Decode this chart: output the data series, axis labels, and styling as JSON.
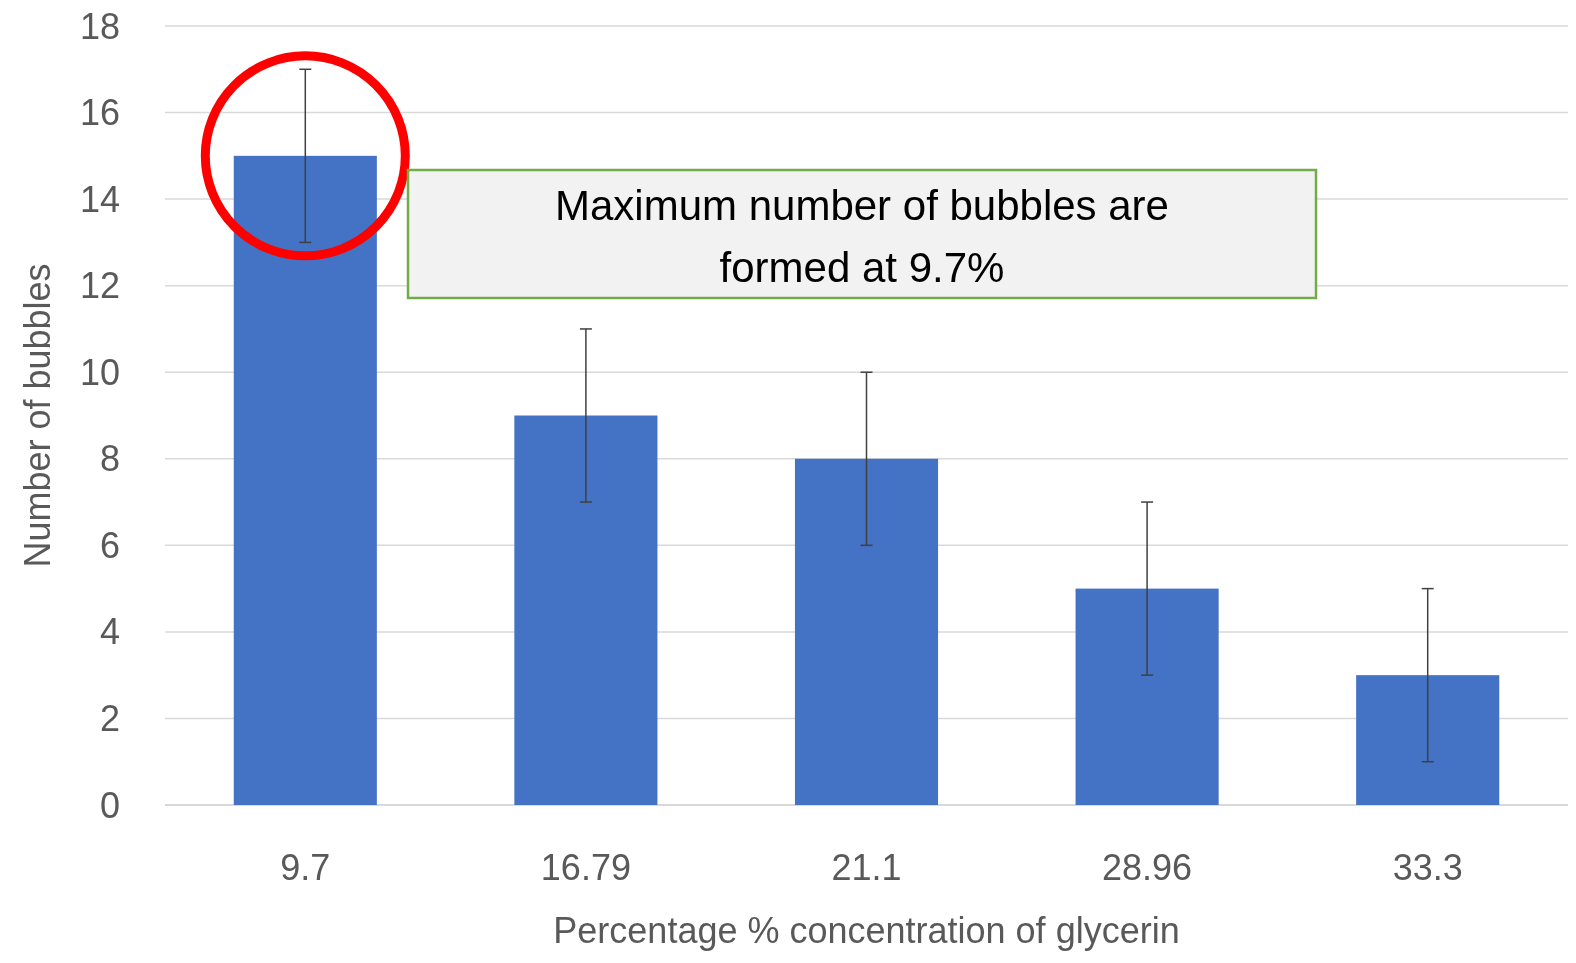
{
  "chart_data": {
    "type": "bar",
    "xlabel": "Percentage % concentration of glycerin",
    "ylabel": "Number of bubbles",
    "categories": [
      "9.7",
      "16.79",
      "21.1",
      "28.96",
      "33.3"
    ],
    "values": [
      15,
      9,
      8,
      5,
      3
    ],
    "errors": [
      2,
      2,
      2,
      2,
      2
    ],
    "color": "#4472c4",
    "ylim": [
      0,
      18
    ],
    "yticks": [
      0,
      2,
      4,
      6,
      8,
      10,
      12,
      14,
      16,
      18
    ],
    "grid": "y",
    "annotations": [
      "Maximum number of bubbles are formed at 9.7%"
    ]
  }
}
